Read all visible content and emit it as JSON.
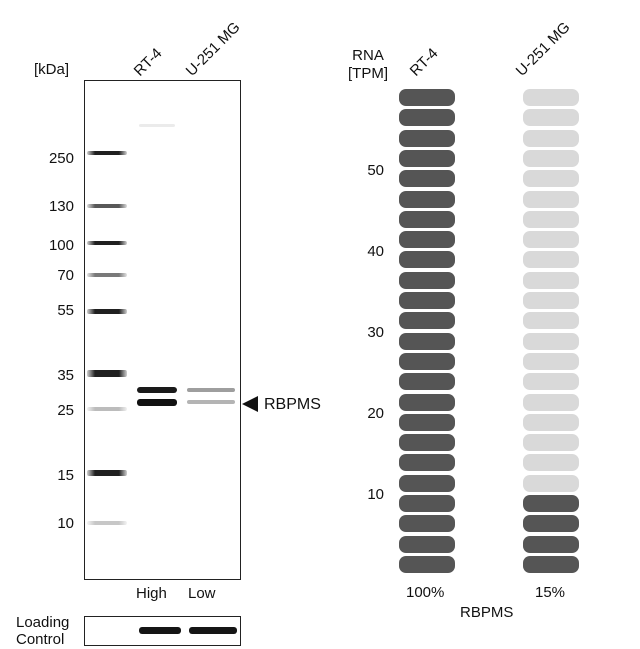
{
  "blot": {
    "unit_label": "[kDa]",
    "lanes": [
      "RT-4",
      "U-251 MG"
    ],
    "mw_markers": [
      "250",
      "130",
      "100",
      "70",
      "55",
      "35",
      "25",
      "15",
      "10"
    ],
    "target_label": "RBPMS",
    "expression_labels": [
      "High",
      "Low"
    ],
    "loading_control_label": "Loading\nControl"
  },
  "rna": {
    "header_label": "RNA\n[TPM]",
    "axis_ticks": [
      "50",
      "40",
      "30",
      "20",
      "10"
    ],
    "samples": [
      {
        "name": "RT-4",
        "percent": "100%",
        "filled_fraction": 1.0
      },
      {
        "name": "U-251 MG",
        "percent": "15%",
        "filled_fraction": 0.15
      }
    ],
    "gene_label": "RBPMS",
    "colors": {
      "filled": "#555555",
      "empty": "#d9d9d9"
    }
  }
}
